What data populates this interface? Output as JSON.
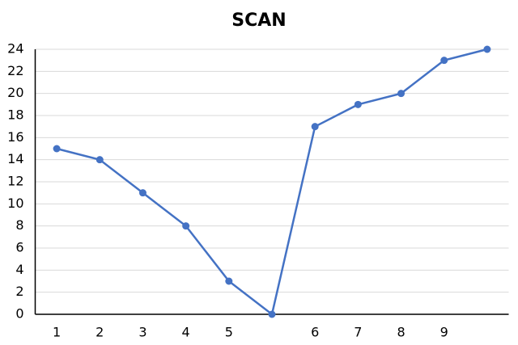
{
  "chart_data": {
    "type": "line",
    "title": "SCAN",
    "categories": [
      "1",
      "2",
      "3",
      "4",
      "5",
      null,
      "6",
      "7",
      "8",
      "9",
      null
    ],
    "values": [
      15,
      14,
      11,
      8,
      3,
      0,
      17,
      19,
      20,
      23,
      24
    ],
    "color": "#4472c4",
    "ylim": [
      0,
      24
    ],
    "yticks": [
      0,
      2,
      4,
      6,
      8,
      10,
      12,
      14,
      16,
      18,
      20,
      22,
      24
    ],
    "grid": true
  }
}
